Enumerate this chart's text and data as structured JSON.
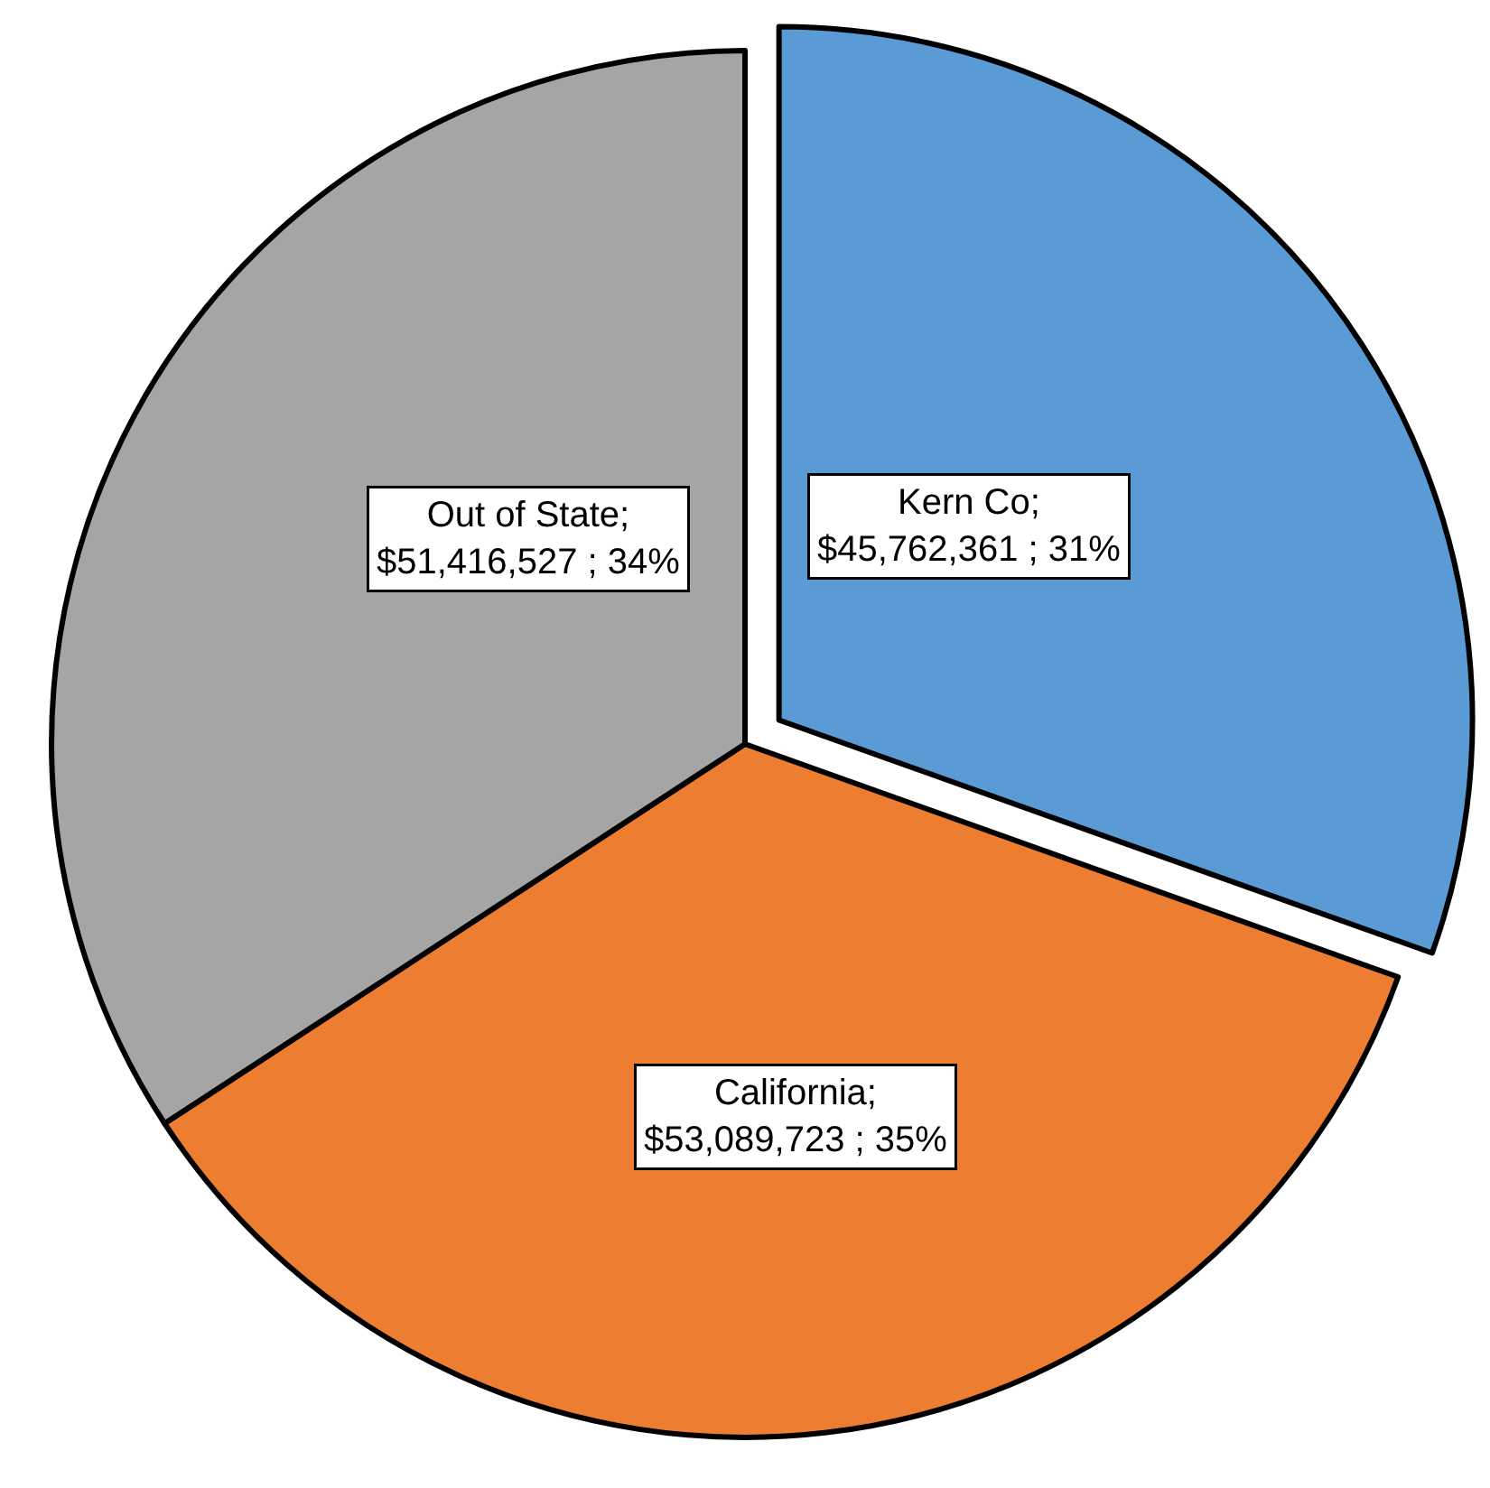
{
  "chart_data": {
    "type": "pie",
    "categories": [
      "Kern Co",
      "California",
      "Out of State"
    ],
    "values": [
      45762361,
      53089723,
      51416527
    ],
    "colors": [
      "#5b9bd5",
      "#ed7d31",
      "#a5a5a5"
    ],
    "value_labels": [
      ";\n$45,762,361 ; 31%",
      ";\n$53,089,723 ; 35%",
      ";\n$51,416,527 ; 34%"
    ],
    "legend": false
  }
}
